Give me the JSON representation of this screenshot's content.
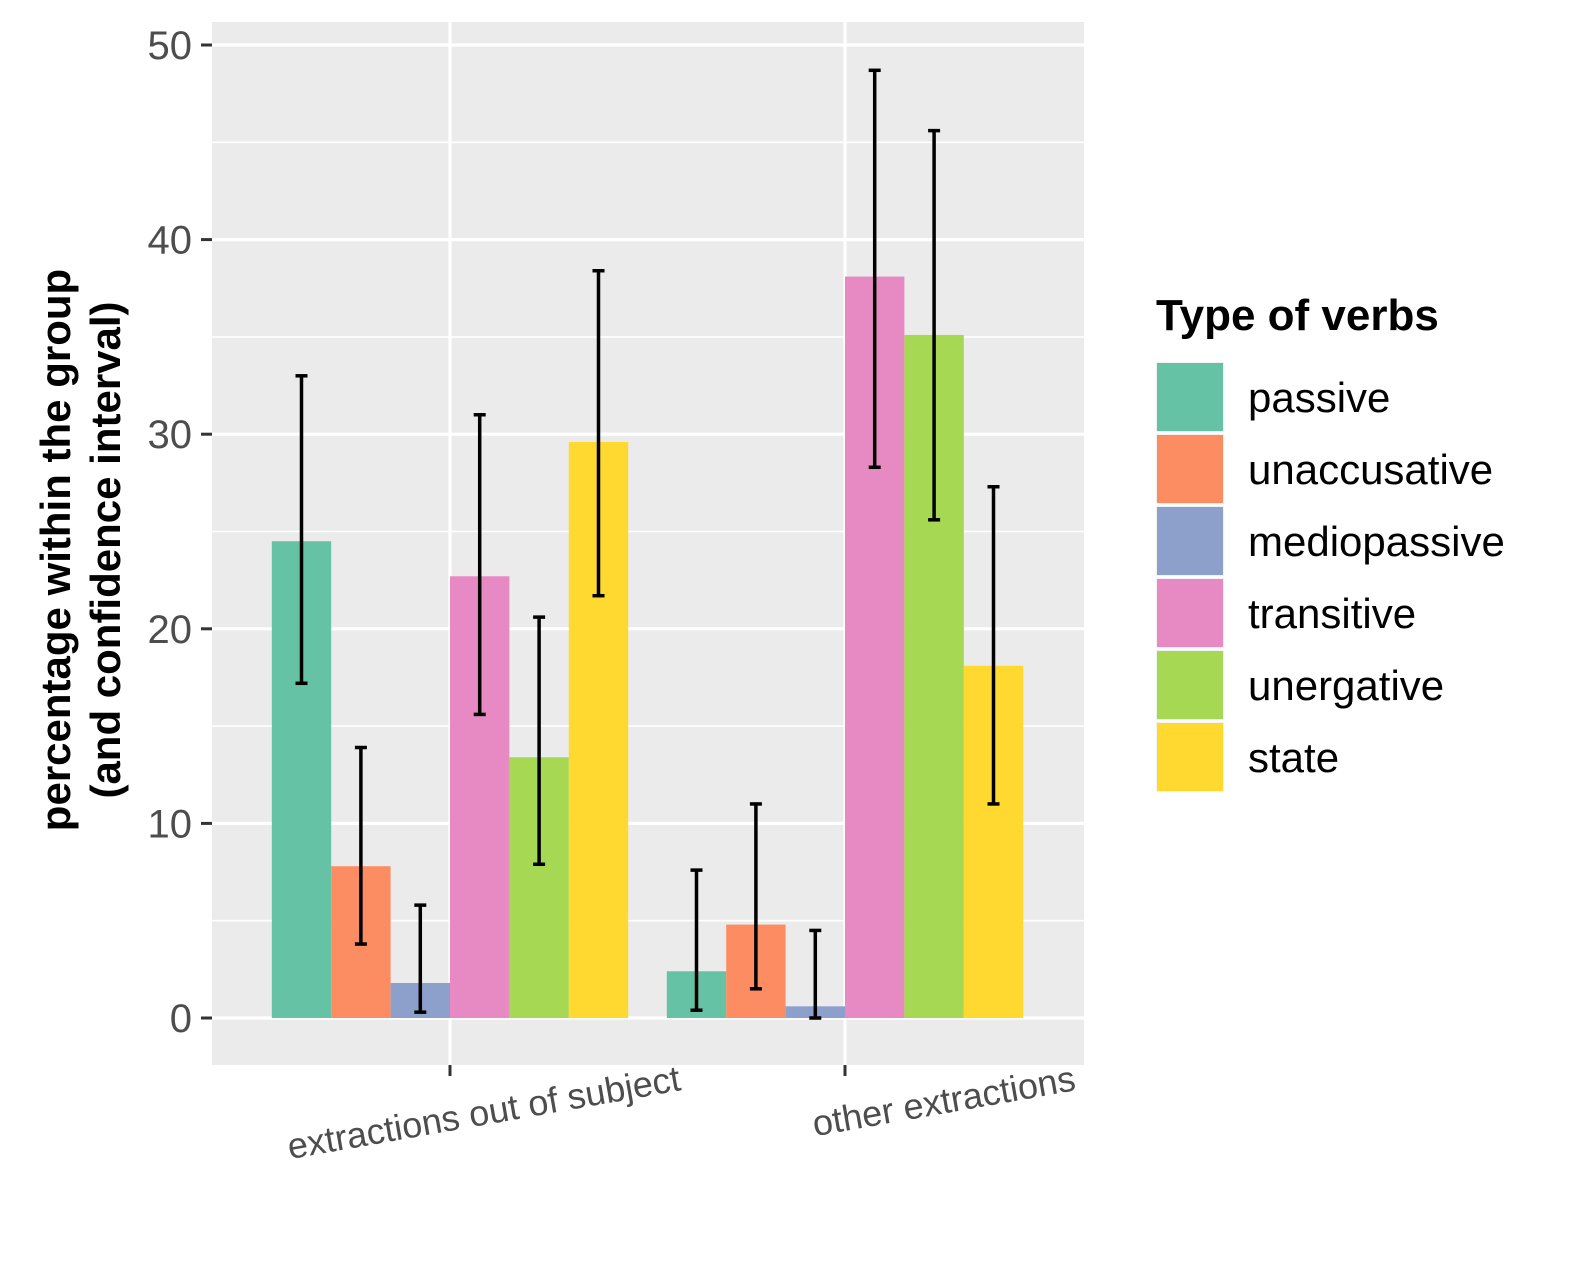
{
  "chart_data": {
    "type": "bar",
    "categories": [
      "extractions out of subject",
      "other extractions"
    ],
    "ylabel_lines": [
      "percentage within the group",
      "(and confidence interval)"
    ],
    "xlabel": "",
    "ylim": [
      0,
      52.5
    ],
    "yticks": [
      0,
      10,
      20,
      30,
      40,
      50
    ],
    "grid": true,
    "legend_position": "right",
    "legend_title": "Type of verbs",
    "series": [
      {
        "name": "passive",
        "color": "#66C2A5",
        "values": [
          24.5,
          2.4
        ],
        "ci_low": [
          17.2,
          0.4
        ],
        "ci_high": [
          33.0,
          7.6
        ]
      },
      {
        "name": "unaccusative",
        "color": "#FC8D62",
        "values": [
          7.8,
          4.8
        ],
        "ci_low": [
          3.8,
          1.5
        ],
        "ci_high": [
          13.9,
          11.0
        ]
      },
      {
        "name": "mediopassive",
        "color": "#8DA0CB",
        "values": [
          1.8,
          0.6
        ],
        "ci_low": [
          0.3,
          0.0
        ],
        "ci_high": [
          5.8,
          4.5
        ]
      },
      {
        "name": "transitive",
        "color": "#E78AC3",
        "values": [
          22.7,
          38.1
        ],
        "ci_low": [
          15.6,
          28.3
        ],
        "ci_high": [
          31.0,
          48.7
        ]
      },
      {
        "name": "unergative",
        "color": "#A6D854",
        "values": [
          13.4,
          35.1
        ],
        "ci_low": [
          7.9,
          25.6
        ],
        "ci_high": [
          20.6,
          45.6
        ]
      },
      {
        "name": "state",
        "color": "#FFD92F",
        "values": [
          29.6,
          18.1
        ],
        "ci_low": [
          21.7,
          11.0
        ],
        "ci_high": [
          38.4,
          27.3
        ]
      }
    ]
  }
}
